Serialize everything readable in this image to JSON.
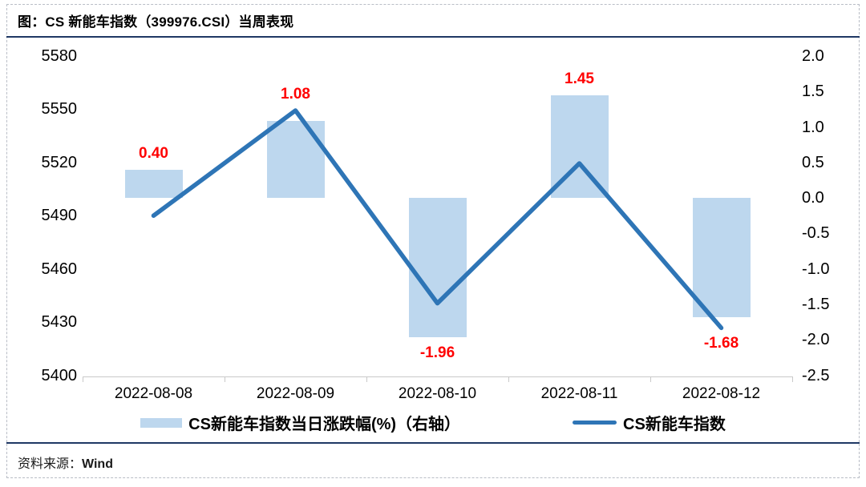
{
  "title": "图：CS 新能车指数（399976.CSI）当周表现",
  "footer": {
    "label": "资料来源：",
    "value": "Wind"
  },
  "colors": {
    "accent_rule": "#1f3864",
    "bar_fill": "#bdd7ee",
    "line_stroke": "#2e75b6",
    "data_label": "#ff0000",
    "axis_gray": "#c9c9c9"
  },
  "chart_data": {
    "type": "bar+line combo",
    "title": "CS 新能车指数（399976.CSI）当周表现",
    "categories": [
      "2022-08-08",
      "2022-08-09",
      "2022-08-10",
      "2022-08-11",
      "2022-08-12"
    ],
    "series": [
      {
        "name": "CS新能车指数当日涨跌幅(%)（右轴）",
        "type": "bar",
        "axis": "right",
        "values": [
          0.4,
          1.08,
          -1.96,
          1.45,
          -1.68
        ],
        "labels": [
          "0.40",
          "1.08",
          "-1.96",
          "1.45",
          "-1.68"
        ],
        "color": "#bdd7ee",
        "label_color": "#ff0000"
      },
      {
        "name": "CS新能车指数",
        "type": "line",
        "axis": "left",
        "values": [
          5490.0,
          5549.3,
          5440.6,
          5519.5,
          5426.7
        ],
        "color": "#2e75b6"
      }
    ],
    "left_axis": {
      "min": 5400,
      "max": 5580,
      "ticks": [
        "5580",
        "5550",
        "5520",
        "5490",
        "5460",
        "5430",
        "5400"
      ]
    },
    "right_axis": {
      "min": -2.5,
      "max": 2.0,
      "ticks": [
        "2.0",
        "1.5",
        "1.0",
        "0.5",
        "0.0",
        "-0.5",
        "-1.0",
        "-1.5",
        "-2.0",
        "-2.5"
      ]
    },
    "grid": false,
    "legend_position": "bottom"
  }
}
